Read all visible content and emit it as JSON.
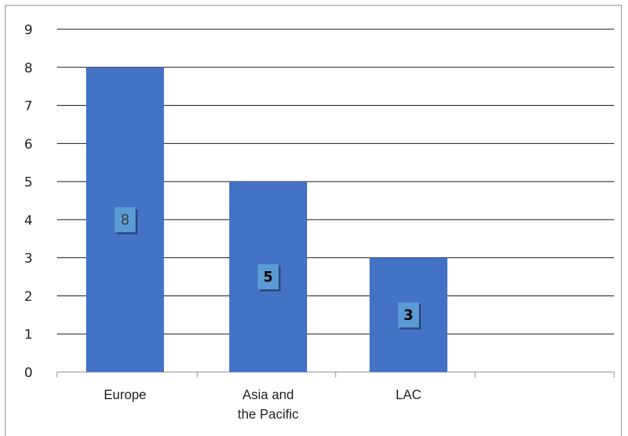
{
  "chart_data": {
    "type": "bar",
    "categories": [
      "Europe",
      "Asia and the Pacific",
      "LAC"
    ],
    "category_lines": [
      [
        "Europe"
      ],
      [
        "Asia and",
        "the Pacific"
      ],
      [
        "LAC"
      ]
    ],
    "values": [
      8,
      5,
      3
    ],
    "data_labels": [
      "8",
      "5",
      "3"
    ],
    "data_label_bold": [
      false,
      true,
      true
    ],
    "ylim": [
      0,
      9
    ],
    "yticks": [
      0,
      1,
      2,
      3,
      4,
      5,
      6,
      7,
      8,
      9
    ],
    "grid": true,
    "legend": "none",
    "title": "",
    "xlabel": "",
    "ylabel": "",
    "colors": {
      "bar": "#4472c4",
      "label_box": "#5b9bd5",
      "grid": "#000000",
      "label_text_plain": "#3c3c3c",
      "label_text_bold": "#000000"
    }
  }
}
